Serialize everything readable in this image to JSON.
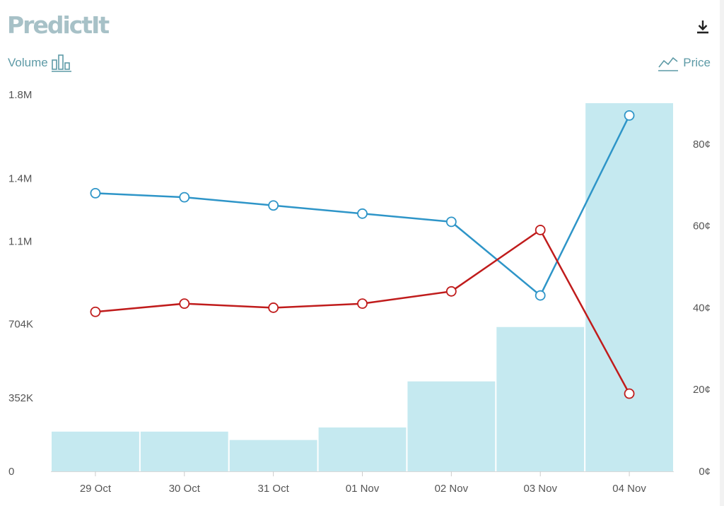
{
  "header": {
    "logo_text": "PredictIt",
    "download_icon": "download-icon"
  },
  "legend": {
    "volume_label": "Volume",
    "volume_icon": "bar-chart-icon",
    "price_label": "Price",
    "price_icon": "line-chart-cent-icon"
  },
  "chart_data": {
    "type": "bar",
    "categories": [
      "29 Oct",
      "30 Oct",
      "31 Oct",
      "01 Nov",
      "02 Nov",
      "03 Nov",
      "04 Nov"
    ],
    "left_axis": {
      "ticks": [
        0,
        352000,
        704000,
        1100000,
        1400000,
        1800000
      ],
      "tick_labels": [
        "0",
        "352K",
        "704K",
        "1.1M",
        "1.4M",
        "1.8M"
      ],
      "range": [
        0,
        1760000
      ]
    },
    "right_axis": {
      "ticks": [
        0,
        20,
        40,
        60,
        80
      ],
      "tick_labels": [
        "0¢",
        "20¢",
        "40¢",
        "60¢",
        "80¢"
      ],
      "range": [
        0,
        90
      ]
    },
    "volume": {
      "values": [
        190000,
        190000,
        150000,
        210000,
        430000,
        690000,
        1760000
      ],
      "color": "#c5e9f0"
    },
    "series": [
      {
        "values": [
          68,
          67,
          65,
          63,
          61,
          43,
          87
        ],
        "color": "#2e95c8"
      },
      {
        "values": [
          39,
          41,
          40,
          41,
          44,
          59,
          19
        ],
        "color": "#c01c1c"
      }
    ],
    "grid": false
  }
}
